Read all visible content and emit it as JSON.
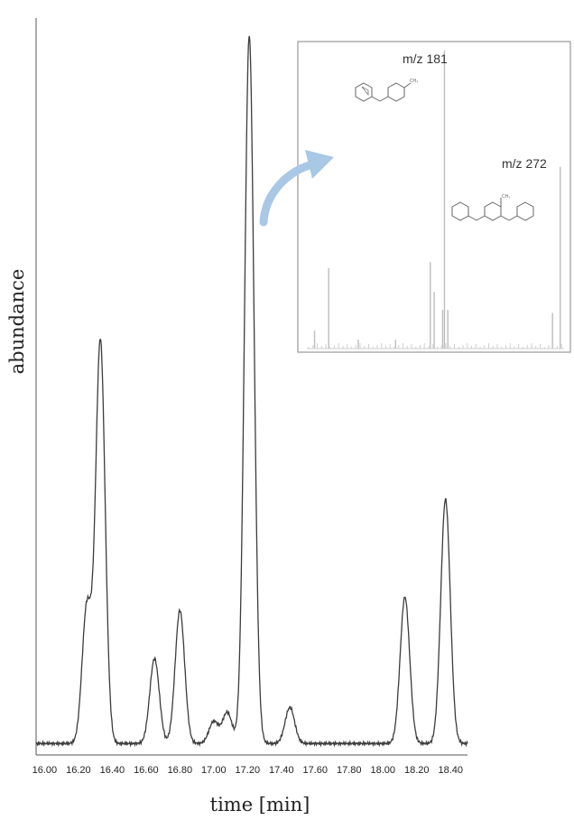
{
  "chart_data": {
    "type": "line",
    "xlabel": "time [min]",
    "ylabel": "abundance",
    "xlim": [
      15.95,
      18.5
    ],
    "ylim": [
      0,
      100
    ],
    "x_ticks": [
      "16.00",
      "16.20",
      "16.40",
      "16.60",
      "16.80",
      "17.00",
      "17.20",
      "17.40",
      "17.60",
      "17.80",
      "18.00",
      "18.20",
      "18.40"
    ],
    "peaks": [
      {
        "x": 16.25,
        "y": 19.3
      },
      {
        "x": 16.33,
        "y": 56.9
      },
      {
        "x": 16.65,
        "y": 12.0
      },
      {
        "x": 16.8,
        "y": 18.8
      },
      {
        "x": 17.0,
        "y": 3.1
      },
      {
        "x": 17.08,
        "y": 4.4
      },
      {
        "x": 17.21,
        "y": 100.0
      },
      {
        "x": 17.45,
        "y": 5.1
      },
      {
        "x": 18.13,
        "y": 20.7
      },
      {
        "x": 18.37,
        "y": 34.5
      }
    ],
    "inset": {
      "type": "bar",
      "annotations": [
        "m/z 181",
        "m/z 272"
      ],
      "bars": [
        {
          "pos": 0.03,
          "h": 0.06
        },
        {
          "pos": 0.085,
          "h": 0.27
        },
        {
          "pos": 0.2,
          "h": 0.03
        },
        {
          "pos": 0.345,
          "h": 0.03
        },
        {
          "pos": 0.48,
          "h": 0.29
        },
        {
          "pos": 0.495,
          "h": 0.19
        },
        {
          "pos": 0.528,
          "h": 0.13
        },
        {
          "pos": 0.535,
          "h": 1.0
        },
        {
          "pos": 0.548,
          "h": 0.13
        },
        {
          "pos": 0.955,
          "h": 0.12
        },
        {
          "pos": 0.985,
          "h": 0.61
        }
      ]
    }
  },
  "colors": {
    "trace": "#3c3c3c",
    "axis": "#555555",
    "inset_bars": "#bdbdbd",
    "arrow": "#a9c8e6"
  }
}
